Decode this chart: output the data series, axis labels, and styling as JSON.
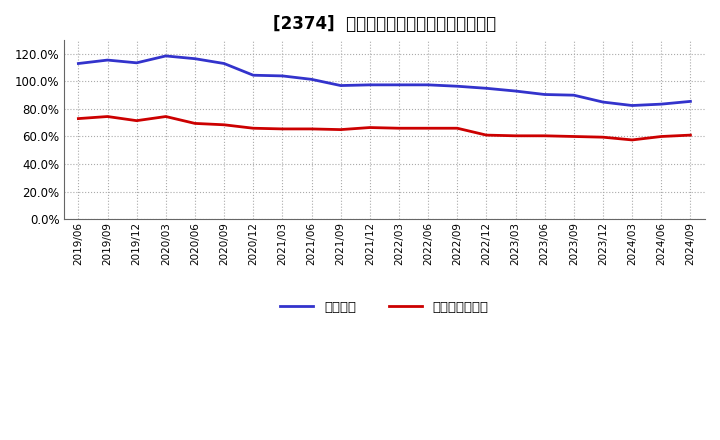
{
  "title": "[2374]  固定比率、固定長期適合率の推移",
  "x_labels": [
    "2019/06",
    "2019/09",
    "2019/12",
    "2020/03",
    "2020/06",
    "2020/09",
    "2020/12",
    "2021/03",
    "2021/06",
    "2021/09",
    "2021/12",
    "2022/03",
    "2022/06",
    "2022/09",
    "2022/12",
    "2023/03",
    "2023/06",
    "2023/09",
    "2023/12",
    "2024/03",
    "2024/06",
    "2024/09"
  ],
  "fixed_ratio": [
    113.0,
    115.5,
    113.5,
    118.5,
    116.5,
    113.0,
    104.5,
    104.0,
    101.5,
    97.0,
    97.5,
    97.5,
    97.5,
    96.5,
    95.0,
    93.0,
    90.5,
    90.0,
    85.0,
    82.5,
    83.5,
    85.5
  ],
  "fixed_lt_ratio": [
    73.0,
    74.5,
    71.5,
    74.5,
    69.5,
    68.5,
    66.0,
    65.5,
    65.5,
    65.0,
    66.5,
    66.0,
    66.0,
    66.0,
    61.0,
    60.5,
    60.5,
    60.0,
    59.5,
    57.5,
    60.0,
    61.0
  ],
  "blue_color": "#3333cc",
  "red_color": "#cc0000",
  "bg_color": "#ffffff",
  "plot_bg_color": "#ffffff",
  "grid_color": "#aaaaaa",
  "legend_fixed": "固定比率",
  "legend_lt": "固定長期適合率",
  "ylim": [
    0,
    130
  ],
  "yticks": [
    0,
    20,
    40,
    60,
    80,
    100,
    120
  ],
  "title_fontsize": 12,
  "line_width": 2.0
}
